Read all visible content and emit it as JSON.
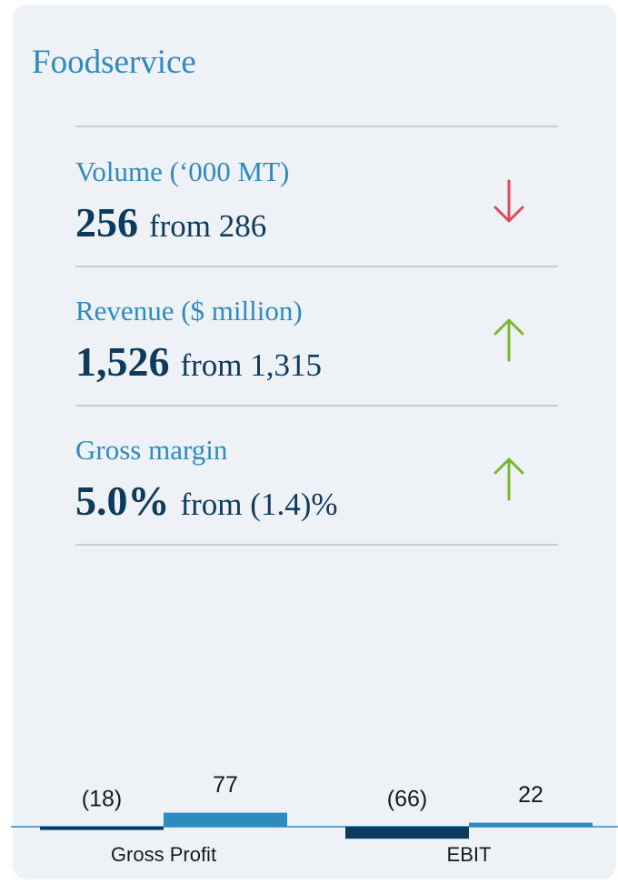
{
  "title": "Foodservice",
  "metrics": [
    {
      "label": "Volume (‘000 MT)",
      "value": "256",
      "comparison": "from 286",
      "trend": "down"
    },
    {
      "label": "Revenue ($ million)",
      "value": "1,526",
      "comparison": "from 1,315",
      "trend": "up"
    },
    {
      "label": "Gross margin",
      "value": "5.0%",
      "comparison": "from (1.4)%",
      "trend": "up"
    }
  ],
  "chart_data": {
    "type": "bar",
    "categories": [
      "Gross Profit",
      "EBIT"
    ],
    "series": [
      {
        "color": "#0d3b5e",
        "values": [
          -18,
          -66
        ],
        "value_labels": [
          "(18)",
          "(66)"
        ]
      },
      {
        "color": "#2e8bc0",
        "values": [
          77,
          22
        ],
        "value_labels": [
          "77",
          "22"
        ]
      }
    ]
  }
}
